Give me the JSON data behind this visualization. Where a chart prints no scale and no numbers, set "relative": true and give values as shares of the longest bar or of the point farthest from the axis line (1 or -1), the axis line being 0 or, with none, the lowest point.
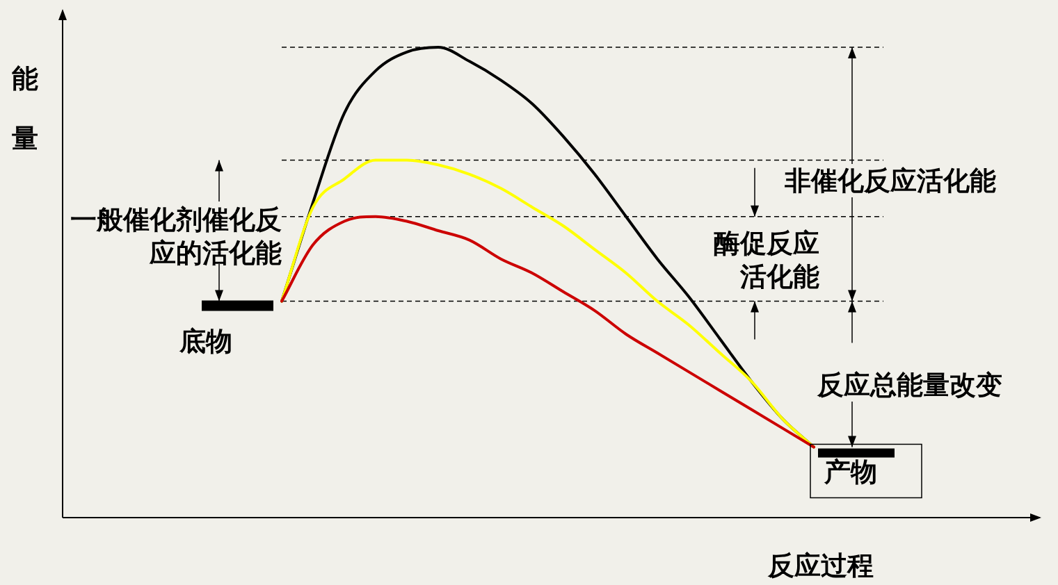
{
  "chart_data": {
    "type": "line",
    "relative": true,
    "xlabel": "反应过程",
    "categories": [
      null,
      null,
      null,
      null,
      null,
      null,
      null,
      null,
      null,
      null,
      null,
      null,
      null,
      null,
      null,
      null,
      null,
      null
    ],
    "series": [
      {
        "color": "#000000",
        "values": [
          0.46,
          0.67,
          0.86,
          0.95,
          0.99,
          1,
          0.97,
          0.93,
          0.88,
          0.81,
          0.73,
          0.64,
          0.55,
          0.47,
          0.38,
          0.29,
          0.21,
          0.15
        ]
      },
      {
        "color": "#ffff00",
        "values": [
          0.46,
          0.66,
          0.72,
          0.76,
          0.76,
          0.75,
          0.73,
          0.7,
          0.66,
          0.62,
          0.57,
          0.52,
          0.46,
          0.41,
          0.35,
          0.29,
          0.21,
          0.15
        ]
      },
      {
        "color": "#cc0000",
        "values": [
          0.46,
          0.58,
          0.63,
          0.64,
          0.63,
          0.61,
          0.59,
          0.55,
          0.52,
          0.48,
          0.44,
          0.39,
          0.35,
          0.31,
          0.27,
          0.23,
          0.19,
          0.15
        ]
      }
    ],
    "ref_lines": [
      {
        "axis": "y",
        "value": 1,
        "line_style": "dashed"
      },
      {
        "axis": "y",
        "value": 0.76,
        "line_style": "dashed"
      },
      {
        "axis": "y",
        "value": 0.64,
        "line_style": "dashed"
      },
      {
        "axis": "y",
        "value": 0.46,
        "line_style": "dashed"
      }
    ],
    "annotations": [
      "一般催化剂催化反应的活化能",
      "非催化反应活化能",
      "酶促反应活化能",
      "反应总能量改变",
      "底物",
      "产物",
      "能量"
    ]
  }
}
